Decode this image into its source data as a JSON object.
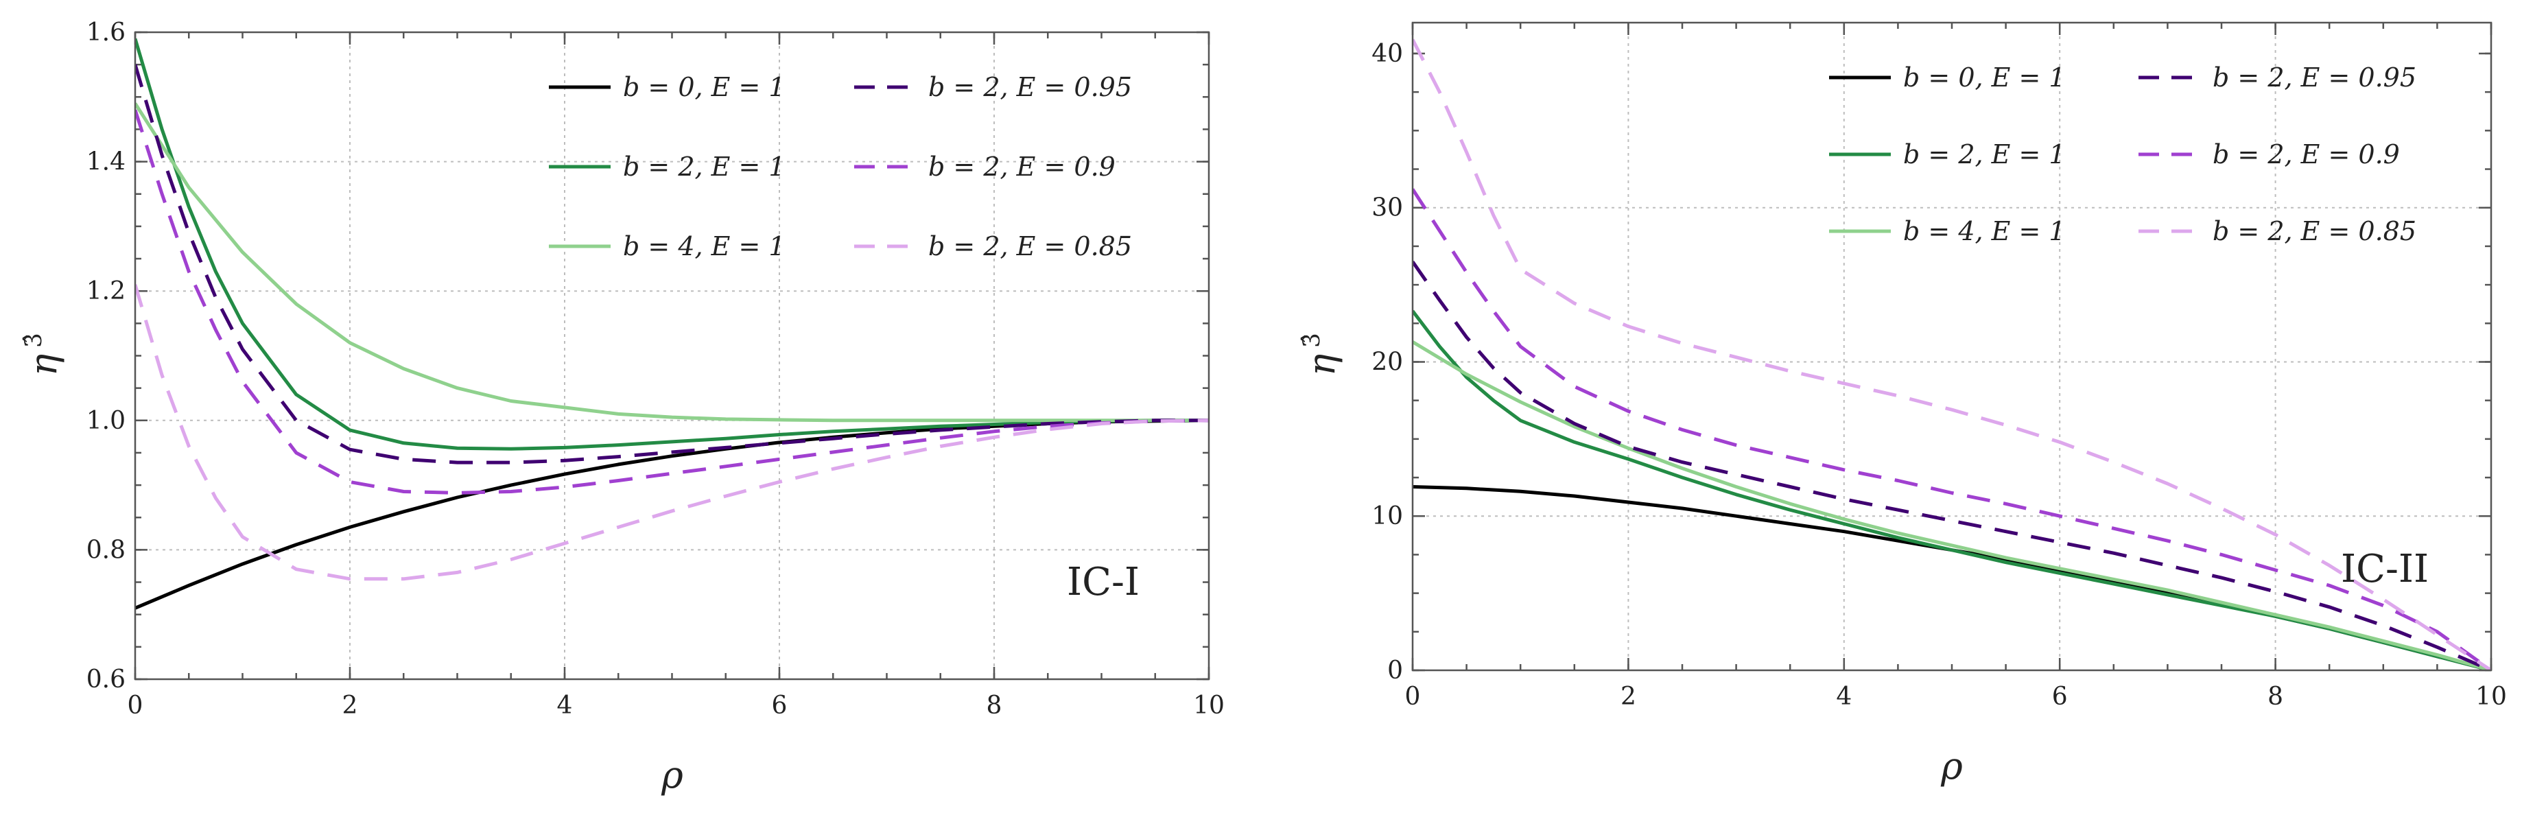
{
  "chart_data": [
    {
      "type": "line",
      "xlabel": "ρ",
      "ylabel_base": "η",
      "ylabel_sup": "3̂",
      "xlim": [
        0,
        10
      ],
      "ylim": [
        0.6,
        1.6
      ],
      "xticks": [
        0,
        2,
        4,
        6,
        8,
        10
      ],
      "xtick_labels": [
        "0",
        "2",
        "4",
        "6",
        "8",
        "10"
      ],
      "yticks": [
        0.6,
        0.8,
        1.0,
        1.2,
        1.4,
        1.6
      ],
      "ytick_labels": [
        "0.6",
        "0.8",
        "1.0",
        "1.2",
        "1.4",
        "1.6"
      ],
      "grid": true,
      "legend_position": "top-right",
      "annotation": "IC-I",
      "series": [
        {
          "name": "b = 0,  E = 1",
          "color": "#000000",
          "dash": "solid",
          "x": [
            0,
            0.5,
            1,
            1.5,
            2,
            2.5,
            3,
            3.5,
            4,
            4.5,
            5,
            5.5,
            6,
            6.5,
            7,
            7.5,
            8,
            8.5,
            9,
            9.5,
            10
          ],
          "y": [
            0.71,
            0.745,
            0.778,
            0.808,
            0.835,
            0.859,
            0.881,
            0.9,
            0.917,
            0.932,
            0.945,
            0.956,
            0.966,
            0.974,
            0.981,
            0.987,
            0.991,
            0.995,
            0.998,
            0.999,
            1.0
          ]
        },
        {
          "name": "b = 2,  E = 1",
          "color": "#238b45",
          "dash": "solid",
          "x": [
            0,
            0.25,
            0.5,
            0.75,
            1,
            1.5,
            2,
            2.5,
            3,
            3.5,
            4,
            4.5,
            5,
            5.5,
            6,
            6.5,
            7,
            7.5,
            8,
            8.5,
            9,
            9.5,
            10
          ],
          "y": [
            1.59,
            1.45,
            1.33,
            1.23,
            1.15,
            1.04,
            0.985,
            0.965,
            0.957,
            0.956,
            0.958,
            0.962,
            0.967,
            0.972,
            0.978,
            0.983,
            0.987,
            0.991,
            0.994,
            0.997,
            0.999,
            1.0,
            1.0
          ]
        },
        {
          "name": "b = 4,  E = 1",
          "color": "#8fd18d",
          "dash": "solid",
          "x": [
            0,
            0.5,
            1,
            1.5,
            2,
            2.5,
            3,
            3.5,
            4,
            4.5,
            5,
            5.5,
            6,
            6.5,
            7,
            7.5,
            8,
            8.5,
            9,
            9.5,
            10
          ],
          "y": [
            1.49,
            1.36,
            1.26,
            1.18,
            1.12,
            1.08,
            1.05,
            1.03,
            1.02,
            1.01,
            1.005,
            1.002,
            1.001,
            1.0,
            1.0,
            1.0,
            1.0,
            1.0,
            1.0,
            1.0,
            1.0
          ]
        },
        {
          "name": "b = 2,  E = 0.95",
          "color": "#3f0071",
          "dash": "dashed",
          "x": [
            0,
            0.25,
            0.5,
            0.75,
            1,
            1.5,
            2,
            2.5,
            3,
            3.5,
            4,
            4.5,
            5,
            5.5,
            6,
            6.5,
            7,
            7.5,
            8,
            8.5,
            9,
            9.5,
            10
          ],
          "y": [
            1.55,
            1.41,
            1.29,
            1.19,
            1.11,
            1.0,
            0.955,
            0.94,
            0.935,
            0.935,
            0.938,
            0.944,
            0.951,
            0.958,
            0.965,
            0.972,
            0.979,
            0.985,
            0.99,
            0.995,
            0.998,
            1.0,
            1.0
          ]
        },
        {
          "name": "b = 2,  E = 0.9",
          "color": "#a040d0",
          "dash": "dashed",
          "x": [
            0,
            0.25,
            0.5,
            0.75,
            1,
            1.5,
            2,
            2.5,
            3,
            3.5,
            4,
            4.5,
            5,
            5.5,
            6,
            6.5,
            7,
            7.5,
            8,
            8.5,
            9,
            9.5,
            10
          ],
          "y": [
            1.48,
            1.35,
            1.23,
            1.14,
            1.06,
            0.95,
            0.905,
            0.89,
            0.888,
            0.89,
            0.897,
            0.907,
            0.918,
            0.929,
            0.94,
            0.951,
            0.962,
            0.973,
            0.983,
            0.991,
            0.996,
            0.999,
            1.0
          ]
        },
        {
          "name": "b = 2,  E = 0.85",
          "color": "#dda7ec",
          "dash": "dashed",
          "x": [
            0,
            0.25,
            0.5,
            0.75,
            1,
            1.5,
            2,
            2.5,
            3,
            3.5,
            4,
            4.5,
            5,
            5.5,
            6,
            6.5,
            7,
            7.5,
            8,
            8.5,
            9,
            9.5,
            10
          ],
          "y": [
            1.21,
            1.07,
            0.96,
            0.88,
            0.82,
            0.77,
            0.755,
            0.755,
            0.765,
            0.785,
            0.81,
            0.835,
            0.86,
            0.883,
            0.905,
            0.925,
            0.943,
            0.96,
            0.974,
            0.986,
            0.995,
            0.999,
            1.0
          ]
        }
      ]
    },
    {
      "type": "line",
      "xlabel": "ρ",
      "ylabel_base": "η",
      "ylabel_sup": "3̂",
      "xlim": [
        0,
        10
      ],
      "ylim": [
        0,
        42
      ],
      "xticks": [
        0,
        2,
        4,
        6,
        8,
        10
      ],
      "xtick_labels": [
        "0",
        "2",
        "4",
        "6",
        "8",
        "10"
      ],
      "yticks": [
        0,
        10,
        20,
        30,
        40
      ],
      "ytick_labels": [
        "0",
        "10",
        "20",
        "30",
        "40"
      ],
      "grid": true,
      "legend_position": "top-right",
      "annotation": "IC-II",
      "series": [
        {
          "name": "b = 0,  E = 1",
          "color": "#000000",
          "dash": "solid",
          "x": [
            0,
            0.5,
            1,
            1.5,
            2,
            2.5,
            3,
            3.5,
            4,
            4.5,
            5,
            5.5,
            6,
            6.5,
            7,
            7.5,
            8,
            8.5,
            9,
            9.5,
            10
          ],
          "y": [
            11.9,
            11.8,
            11.6,
            11.3,
            10.9,
            10.5,
            10.0,
            9.5,
            9.0,
            8.4,
            7.8,
            7.2,
            6.5,
            5.8,
            5.1,
            4.3,
            3.5,
            2.7,
            1.8,
            0.9,
            0.0
          ]
        },
        {
          "name": "b = 2,  E = 1",
          "color": "#238b45",
          "dash": "solid",
          "x": [
            0,
            0.25,
            0.5,
            0.75,
            1,
            1.5,
            2,
            2.5,
            3,
            3.5,
            4,
            4.5,
            5,
            5.5,
            6,
            6.5,
            7,
            7.5,
            8,
            8.5,
            9,
            9.5,
            10
          ],
          "y": [
            23.3,
            21.0,
            19.0,
            17.5,
            16.2,
            14.8,
            13.7,
            12.5,
            11.4,
            10.4,
            9.5,
            8.6,
            7.8,
            7.0,
            6.3,
            5.6,
            4.9,
            4.2,
            3.5,
            2.7,
            1.8,
            0.9,
            0.0
          ]
        },
        {
          "name": "b = 4,  E = 1",
          "color": "#8fd18d",
          "dash": "solid",
          "x": [
            0,
            0.5,
            1,
            1.5,
            2,
            2.5,
            3,
            3.5,
            4,
            4.5,
            5,
            5.5,
            6,
            6.5,
            7,
            7.5,
            8,
            8.5,
            9,
            9.5,
            10
          ],
          "y": [
            21.3,
            19.2,
            17.4,
            15.8,
            14.4,
            13.1,
            11.9,
            10.8,
            9.8,
            8.9,
            8.1,
            7.3,
            6.6,
            5.9,
            5.2,
            4.4,
            3.6,
            2.8,
            1.9,
            1.0,
            0.0
          ]
        },
        {
          "name": "b = 2,  E = 0.95",
          "color": "#3f0071",
          "dash": "dashed",
          "x": [
            0,
            0.25,
            0.5,
            0.75,
            1,
            1.5,
            2,
            2.5,
            3,
            3.5,
            4,
            4.5,
            5,
            5.5,
            6,
            6.5,
            7,
            7.5,
            8,
            8.5,
            9,
            9.5,
            10
          ],
          "y": [
            26.5,
            24.0,
            21.6,
            19.6,
            18.0,
            16.0,
            14.5,
            13.5,
            12.7,
            11.9,
            11.1,
            10.4,
            9.7,
            9.0,
            8.3,
            7.6,
            6.8,
            6.0,
            5.1,
            4.1,
            2.9,
            1.5,
            0.0
          ]
        },
        {
          "name": "b = 2,  E = 0.9",
          "color": "#a040d0",
          "dash": "dashed",
          "x": [
            0,
            0.25,
            0.5,
            0.75,
            1,
            1.5,
            2,
            2.5,
            3,
            3.5,
            4,
            4.5,
            5,
            5.5,
            6,
            6.5,
            7,
            7.5,
            8,
            8.5,
            9,
            9.5,
            10
          ],
          "y": [
            31.2,
            28.5,
            25.8,
            23.3,
            21.0,
            18.4,
            16.8,
            15.6,
            14.6,
            13.8,
            13.0,
            12.3,
            11.5,
            10.8,
            10.0,
            9.2,
            8.4,
            7.5,
            6.5,
            5.5,
            4.2,
            2.5,
            0.0
          ]
        },
        {
          "name": "b = 2,  E = 0.85",
          "color": "#dda7ec",
          "dash": "dashed",
          "x": [
            0,
            0.25,
            0.5,
            0.75,
            1,
            1.5,
            2,
            2.5,
            3,
            3.5,
            4,
            4.5,
            5,
            5.5,
            6,
            6.5,
            7,
            7.5,
            8,
            8.5,
            9,
            9.5,
            10
          ],
          "y": [
            40.9,
            37.5,
            33.6,
            29.5,
            26.0,
            23.8,
            22.3,
            21.2,
            20.3,
            19.4,
            18.6,
            17.8,
            16.9,
            15.9,
            14.8,
            13.5,
            12.1,
            10.5,
            8.8,
            6.8,
            4.6,
            2.3,
            0.0
          ]
        }
      ]
    }
  ]
}
